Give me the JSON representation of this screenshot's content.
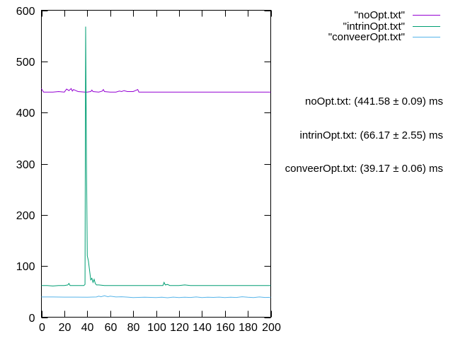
{
  "chart_data": {
    "type": "line",
    "xlim": [
      0,
      200
    ],
    "ylim": [
      0,
      600
    ],
    "x_ticks": [
      0,
      20,
      40,
      60,
      80,
      100,
      120,
      140,
      160,
      180,
      200
    ],
    "y_ticks": [
      0,
      100,
      200,
      300,
      400,
      500,
      600
    ],
    "grid": false,
    "legend_position": "top-right outside plot",
    "series": [
      {
        "name": "\"noOpt.txt\"",
        "color": "#9400d3",
        "points": [
          [
            0,
            447
          ],
          [
            1,
            443
          ],
          [
            2,
            440
          ],
          [
            10,
            440
          ],
          [
            15,
            441
          ],
          [
            20,
            440
          ],
          [
            22,
            446
          ],
          [
            24,
            443
          ],
          [
            26,
            447
          ],
          [
            27,
            442
          ],
          [
            28,
            445
          ],
          [
            30,
            443
          ],
          [
            32,
            441
          ],
          [
            38,
            440
          ],
          [
            40,
            440
          ],
          [
            43,
            441
          ],
          [
            44,
            444
          ],
          [
            45,
            441
          ],
          [
            50,
            440
          ],
          [
            53,
            442
          ],
          [
            54,
            445
          ],
          [
            55,
            441
          ],
          [
            60,
            440
          ],
          [
            65,
            440
          ],
          [
            68,
            442
          ],
          [
            70,
            441
          ],
          [
            72,
            443
          ],
          [
            75,
            441
          ],
          [
            80,
            441
          ],
          [
            82,
            443
          ],
          [
            84,
            445
          ],
          [
            85,
            440
          ],
          [
            100,
            440
          ],
          [
            150,
            440
          ],
          [
            200,
            440
          ]
        ]
      },
      {
        "name": "\"intrinOpt.txt\"",
        "color": "#009e73",
        "points": [
          [
            0,
            62
          ],
          [
            5,
            62
          ],
          [
            10,
            61
          ],
          [
            15,
            62
          ],
          [
            20,
            62
          ],
          [
            23,
            63
          ],
          [
            24,
            66
          ],
          [
            25,
            62
          ],
          [
            30,
            62
          ],
          [
            37,
            62
          ],
          [
            38,
            64
          ],
          [
            38.6,
            568
          ],
          [
            39.3,
            300
          ],
          [
            40,
            120
          ],
          [
            41,
            110
          ],
          [
            42,
            92
          ],
          [
            43,
            73
          ],
          [
            44,
            76
          ],
          [
            45,
            68
          ],
          [
            46,
            74
          ],
          [
            47,
            66
          ],
          [
            48,
            63
          ],
          [
            50,
            63
          ],
          [
            55,
            62
          ],
          [
            60,
            62
          ],
          [
            70,
            62
          ],
          [
            80,
            62
          ],
          [
            90,
            62
          ],
          [
            100,
            62
          ],
          [
            106,
            62
          ],
          [
            107,
            68
          ],
          [
            108,
            63
          ],
          [
            110,
            64
          ],
          [
            112,
            62
          ],
          [
            120,
            62
          ],
          [
            125,
            63
          ],
          [
            130,
            62
          ],
          [
            140,
            62
          ],
          [
            150,
            62
          ],
          [
            160,
            62
          ],
          [
            170,
            62
          ],
          [
            180,
            62
          ],
          [
            190,
            62
          ],
          [
            200,
            62
          ]
        ]
      },
      {
        "name": "\"conveerOpt.txt\"",
        "color": "#56b4e9",
        "points": [
          [
            0,
            39.5
          ],
          [
            10,
            39.5
          ],
          [
            20,
            39.3
          ],
          [
            30,
            39.3
          ],
          [
            40,
            39.1
          ],
          [
            48,
            39.6
          ],
          [
            50,
            41
          ],
          [
            52,
            40
          ],
          [
            55,
            42
          ],
          [
            58,
            40
          ],
          [
            60,
            41
          ],
          [
            65,
            39.5
          ],
          [
            70,
            40
          ],
          [
            75,
            39.2
          ],
          [
            80,
            38.5
          ],
          [
            90,
            39
          ],
          [
            100,
            38.5
          ],
          [
            105,
            39
          ],
          [
            110,
            38
          ],
          [
            115,
            39.2
          ],
          [
            120,
            38.5
          ],
          [
            125,
            39
          ],
          [
            130,
            38.6
          ],
          [
            135,
            39.5
          ],
          [
            140,
            38.4
          ],
          [
            145,
            39
          ],
          [
            150,
            38.7
          ],
          [
            155,
            39.2
          ],
          [
            160,
            38.5
          ],
          [
            165,
            39.1
          ],
          [
            170,
            38.6
          ],
          [
            175,
            40
          ],
          [
            180,
            39
          ],
          [
            185,
            38.5
          ],
          [
            190,
            39.5
          ],
          [
            195,
            38.6
          ],
          [
            200,
            39
          ]
        ]
      }
    ],
    "annotations": [
      "noOpt.txt: (441.58 ± 0.09) ms",
      "intrinOpt.txt: (66.17 ± 2.55) ms",
      "conveerOpt.txt: (39.17 ± 0.06) ms"
    ]
  }
}
